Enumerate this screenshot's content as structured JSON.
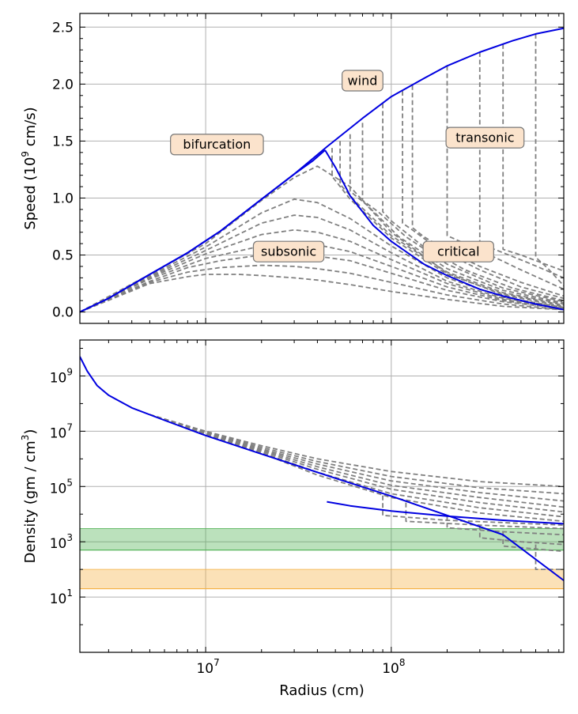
{
  "chart_data": [
    {
      "type": "line",
      "panel": "top",
      "ylabel_main": "Speed (10",
      "ylabel_exp": "9",
      "ylabel_tail": " cm/s)",
      "xscale": "log",
      "xlim": [
        2100000,
        850000000
      ],
      "ylim": [
        -0.1,
        2.62
      ],
      "yticks": [
        0.0,
        0.5,
        1.0,
        1.5,
        2.0,
        2.5
      ],
      "ytick_labels": [
        "0.0",
        "0.5",
        "1.0",
        "1.5",
        "2.0",
        "2.5"
      ],
      "grid": true,
      "colors": {
        "solid": "#0000e0",
        "dashed": "#808080"
      },
      "annotations": [
        {
          "text": "wind",
          "x": 70000000,
          "y": 2.03
        },
        {
          "text": "bifurcation",
          "x": 11500000,
          "y": 1.47
        },
        {
          "text": "transonic",
          "x": 320000000,
          "y": 1.53
        },
        {
          "text": "subsonic",
          "x": 28000000,
          "y": 0.53
        },
        {
          "text": "critical",
          "x": 230000000,
          "y": 0.53
        }
      ],
      "series": [
        {
          "style": "solid",
          "x": [
            2100000,
            3000000,
            5000000,
            8000000,
            12000000,
            20000000,
            30000000,
            45000000,
            70000000,
            100000000,
            150000000,
            200000000,
            300000000,
            450000000,
            600000000,
            850000000
          ],
          "y": [
            0.0,
            0.12,
            0.33,
            0.52,
            0.71,
            0.99,
            1.21,
            1.45,
            1.7,
            1.89,
            2.05,
            2.16,
            2.28,
            2.38,
            2.44,
            2.49
          ]
        },
        {
          "style": "solid",
          "x": [
            2100000,
            3000000,
            5000000,
            8000000,
            12000000,
            20000000,
            30000000,
            38000000,
            44000000
          ],
          "y": [
            0.0,
            0.12,
            0.33,
            0.52,
            0.71,
            0.99,
            1.21,
            1.33,
            1.42
          ]
        },
        {
          "style": "solid",
          "x": [
            44000000,
            50000000,
            60000000,
            80000000,
            100000000,
            150000000,
            200000000,
            300000000,
            400000000,
            600000000,
            850000000
          ],
          "y": [
            1.42,
            1.27,
            1.02,
            0.76,
            0.62,
            0.42,
            0.32,
            0.2,
            0.14,
            0.07,
            0.02
          ]
        },
        {
          "style": "dashed",
          "x": [
            2100000,
            5000000,
            10000000,
            20000000,
            30000000,
            40000000,
            60000000,
            100000000,
            200000000,
            400000000,
            850000000
          ],
          "y": [
            0.0,
            0.33,
            0.6,
            0.98,
            1.18,
            1.28,
            1.1,
            0.7,
            0.34,
            0.15,
            0.05
          ]
        },
        {
          "style": "dashed",
          "x": [
            2100000,
            5000000,
            10000000,
            20000000,
            30000000,
            40000000,
            60000000,
            100000000,
            200000000,
            400000000,
            850000000
          ],
          "y": [
            0.0,
            0.32,
            0.57,
            0.87,
            0.99,
            0.96,
            0.82,
            0.58,
            0.3,
            0.13,
            0.04
          ]
        },
        {
          "style": "dashed",
          "x": [
            2100000,
            5000000,
            10000000,
            20000000,
            30000000,
            40000000,
            60000000,
            100000000,
            200000000,
            400000000,
            850000000
          ],
          "y": [
            0.0,
            0.31,
            0.54,
            0.78,
            0.85,
            0.83,
            0.72,
            0.52,
            0.27,
            0.12,
            0.04
          ]
        },
        {
          "style": "dashed",
          "x": [
            2100000,
            5000000,
            10000000,
            20000000,
            30000000,
            40000000,
            60000000,
            100000000,
            200000000,
            400000000,
            850000000
          ],
          "y": [
            0.0,
            0.3,
            0.51,
            0.68,
            0.72,
            0.7,
            0.62,
            0.46,
            0.25,
            0.11,
            0.03
          ]
        },
        {
          "style": "dashed",
          "x": [
            2100000,
            5000000,
            10000000,
            20000000,
            30000000,
            40000000,
            60000000,
            100000000,
            200000000,
            400000000,
            850000000
          ],
          "y": [
            0.0,
            0.29,
            0.47,
            0.58,
            0.6,
            0.59,
            0.53,
            0.4,
            0.22,
            0.1,
            0.03
          ]
        },
        {
          "style": "dashed",
          "x": [
            2100000,
            5000000,
            8000000,
            12000000,
            20000000,
            30000000,
            40000000,
            60000000,
            100000000,
            200000000,
            400000000,
            850000000
          ],
          "y": [
            0.0,
            0.27,
            0.39,
            0.45,
            0.5,
            0.51,
            0.49,
            0.45,
            0.34,
            0.19,
            0.09,
            0.03
          ]
        },
        {
          "style": "dashed",
          "x": [
            2100000,
            5000000,
            8000000,
            12000000,
            20000000,
            30000000,
            40000000,
            60000000,
            100000000,
            200000000,
            400000000,
            850000000
          ],
          "y": [
            0.0,
            0.26,
            0.35,
            0.39,
            0.41,
            0.4,
            0.38,
            0.34,
            0.26,
            0.15,
            0.07,
            0.02
          ]
        },
        {
          "style": "dashed",
          "x": [
            2100000,
            5000000,
            8000000,
            10000000,
            15000000,
            20000000,
            30000000,
            40000000,
            60000000,
            100000000,
            200000000,
            400000000,
            850000000
          ],
          "y": [
            0.0,
            0.25,
            0.31,
            0.33,
            0.33,
            0.32,
            0.3,
            0.28,
            0.24,
            0.18,
            0.11,
            0.05,
            0.02
          ]
        },
        {
          "style": "dashed",
          "x": [
            48000000,
            48000000,
            60000000,
            100000000,
            200000000,
            400000000,
            850000000
          ],
          "y": [
            1.44,
            1.19,
            0.99,
            0.65,
            0.33,
            0.16,
            0.06
          ]
        },
        {
          "style": "dashed",
          "x": [
            53000000,
            53000000,
            65000000,
            100000000,
            200000000,
            400000000,
            850000000
          ],
          "y": [
            1.5,
            1.12,
            0.96,
            0.67,
            0.35,
            0.17,
            0.07
          ]
        },
        {
          "style": "dashed",
          "x": [
            60000000,
            60000000,
            75000000,
            110000000,
            200000000,
            400000000,
            850000000
          ],
          "y": [
            1.56,
            1.06,
            0.93,
            0.66,
            0.38,
            0.19,
            0.08
          ]
        },
        {
          "style": "dashed",
          "x": [
            70000000,
            70000000,
            85000000,
            120000000,
            200000000,
            400000000,
            850000000
          ],
          "y": [
            1.66,
            0.98,
            0.88,
            0.66,
            0.42,
            0.21,
            0.09
          ]
        },
        {
          "style": "dashed",
          "x": [
            90000000,
            90000000,
            100000000,
            150000000,
            250000000,
            450000000,
            850000000
          ],
          "y": [
            1.83,
            0.88,
            0.8,
            0.57,
            0.37,
            0.21,
            0.1
          ]
        },
        {
          "style": "dashed",
          "x": [
            115000000,
            115000000,
            130000000,
            180000000,
            300000000,
            500000000,
            850000000
          ],
          "y": [
            1.94,
            0.78,
            0.72,
            0.55,
            0.37,
            0.22,
            0.12
          ]
        },
        {
          "style": "dashed",
          "x": [
            130000000,
            130000000,
            150000000,
            200000000,
            300000000,
            500000000,
            850000000
          ],
          "y": [
            1.99,
            0.74,
            0.66,
            0.54,
            0.4,
            0.26,
            0.14
          ]
        },
        {
          "style": "dashed",
          "x": [
            200000000,
            200000000,
            250000000,
            350000000,
            500000000,
            850000000
          ],
          "y": [
            2.16,
            0.67,
            0.6,
            0.49,
            0.37,
            0.2
          ]
        },
        {
          "style": "dashed",
          "x": [
            300000000,
            300000000,
            400000000,
            550000000,
            850000000
          ],
          "y": [
            2.28,
            0.6,
            0.52,
            0.43,
            0.3
          ]
        },
        {
          "style": "dashed",
          "x": [
            400000000,
            400000000,
            500000000,
            650000000,
            850000000
          ],
          "y": [
            2.35,
            0.55,
            0.5,
            0.43,
            0.36
          ]
        },
        {
          "style": "dashed",
          "x": [
            600000000,
            600000000,
            700000000,
            850000000
          ],
          "y": [
            2.44,
            0.48,
            0.38,
            0.23
          ]
        }
      ]
    },
    {
      "type": "line",
      "panel": "bottom",
      "ylabel_main": "Density (gm / cm",
      "ylabel_exp": "3",
      "ylabel_tail": ")",
      "xlabel": "Radius (cm)",
      "xscale": "log",
      "yscale": "log",
      "xlim": [
        2100000,
        850000000
      ],
      "ylim": [
        0.1,
        20000000000
      ],
      "xticks": [
        10000000,
        100000000
      ],
      "xtick_labels": [
        {
          "base": "10",
          "exp": "7"
        },
        {
          "base": "10",
          "exp": "8"
        }
      ],
      "yticks": [
        10,
        1000,
        100000,
        10000000,
        1000000000
      ],
      "ytick_labels": [
        {
          "base": "10",
          "exp": "1"
        },
        {
          "base": "10",
          "exp": "3"
        },
        {
          "base": "10",
          "exp": "5"
        },
        {
          "base": "10",
          "exp": "7"
        },
        {
          "base": "10",
          "exp": "9"
        }
      ],
      "grid": true,
      "colors": {
        "solid": "#0000e0",
        "dashed": "#808080",
        "green_band": "#4caf50",
        "orange_band": "#f5b041"
      },
      "bands": [
        {
          "name": "",
          "color": "green",
          "ylow": 500,
          "yhigh": 3000
        },
        {
          "name": "",
          "color": "orange",
          "ylow": 20,
          "yhigh": 100
        }
      ],
      "series": [
        {
          "style": "solid",
          "x": [
            2100000,
            2300000,
            2600000,
            3000000,
            4000000,
            6000000,
            10000000,
            20000000,
            50000000,
            100000000,
            200000000,
            400000000,
            850000000
          ],
          "y": [
            5000000000,
            1500000000,
            450000000,
            200000000,
            70000000,
            25000000,
            7000000,
            1500000,
            200000,
            45000,
            9000,
            1800,
            40
          ]
        },
        {
          "style": "solid",
          "x": [
            45000000,
            60000000,
            100000000,
            200000000,
            400000000,
            850000000
          ],
          "y": [
            28000,
            20000,
            13000,
            8500,
            6000,
            4500
          ]
        },
        {
          "style": "dashed",
          "x": [
            5000000,
            10000000,
            20000000,
            40000000,
            100000000,
            300000000,
            850000000
          ],
          "y": [
            40000000,
            10000000,
            3000000,
            1000000,
            350000,
            150000,
            100000
          ]
        },
        {
          "style": "dashed",
          "x": [
            5000000,
            10000000,
            20000000,
            40000000,
            100000000,
            300000000,
            850000000
          ],
          "y": [
            40000000,
            9500000,
            2600000,
            800000,
            230000,
            90000,
            55000
          ]
        },
        {
          "style": "dashed",
          "x": [
            5000000,
            10000000,
            20000000,
            40000000,
            100000000,
            300000000,
            850000000
          ],
          "y": [
            40000000,
            9000000,
            2300000,
            650000,
            160000,
            60000,
            30000
          ]
        },
        {
          "style": "dashed",
          "x": [
            5000000,
            10000000,
            20000000,
            40000000,
            100000000,
            300000000,
            850000000
          ],
          "y": [
            40000000,
            8500000,
            2100000,
            520000,
            110000,
            40000,
            18000
          ]
        },
        {
          "style": "dashed",
          "x": [
            5000000,
            10000000,
            20000000,
            40000000,
            100000000,
            300000000,
            850000000
          ],
          "y": [
            40000000,
            8000000,
            1900000,
            420000,
            80000,
            26000,
            12000
          ]
        },
        {
          "style": "dashed",
          "x": [
            5000000,
            10000000,
            20000000,
            40000000,
            100000000,
            300000000,
            850000000
          ],
          "y": [
            40000000,
            7500000,
            1700000,
            330000,
            55000,
            17000,
            8000
          ]
        },
        {
          "style": "dashed",
          "x": [
            5000000,
            10000000,
            20000000,
            40000000,
            100000000,
            300000000,
            850000000
          ],
          "y": [
            40000000,
            7000000,
            1600000,
            260000,
            40000,
            11000,
            5500
          ]
        },
        {
          "style": "dashed",
          "x": [
            90000000,
            90000000,
            200000000,
            850000000
          ],
          "y": [
            47000,
            9000,
            6000,
            4000
          ]
        },
        {
          "style": "dashed",
          "x": [
            120000000,
            120000000,
            300000000,
            850000000
          ],
          "y": [
            26000,
            5500,
            4000,
            3000
          ]
        },
        {
          "style": "dashed",
          "x": [
            200000000,
            200000000,
            400000000,
            850000000
          ],
          "y": [
            9000,
            3200,
            2300,
            1800
          ]
        },
        {
          "style": "dashed",
          "x": [
            300000000,
            300000000,
            500000000,
            850000000
          ],
          "y": [
            4000,
            1400,
            1000,
            800
          ]
        },
        {
          "style": "dashed",
          "x": [
            400000000,
            400000000,
            600000000,
            850000000
          ],
          "y": [
            2300,
            700,
            550,
            450
          ]
        },
        {
          "style": "dashed",
          "x": [
            600000000,
            600000000,
            850000000
          ],
          "y": [
            800,
            100,
            100
          ]
        }
      ]
    }
  ]
}
